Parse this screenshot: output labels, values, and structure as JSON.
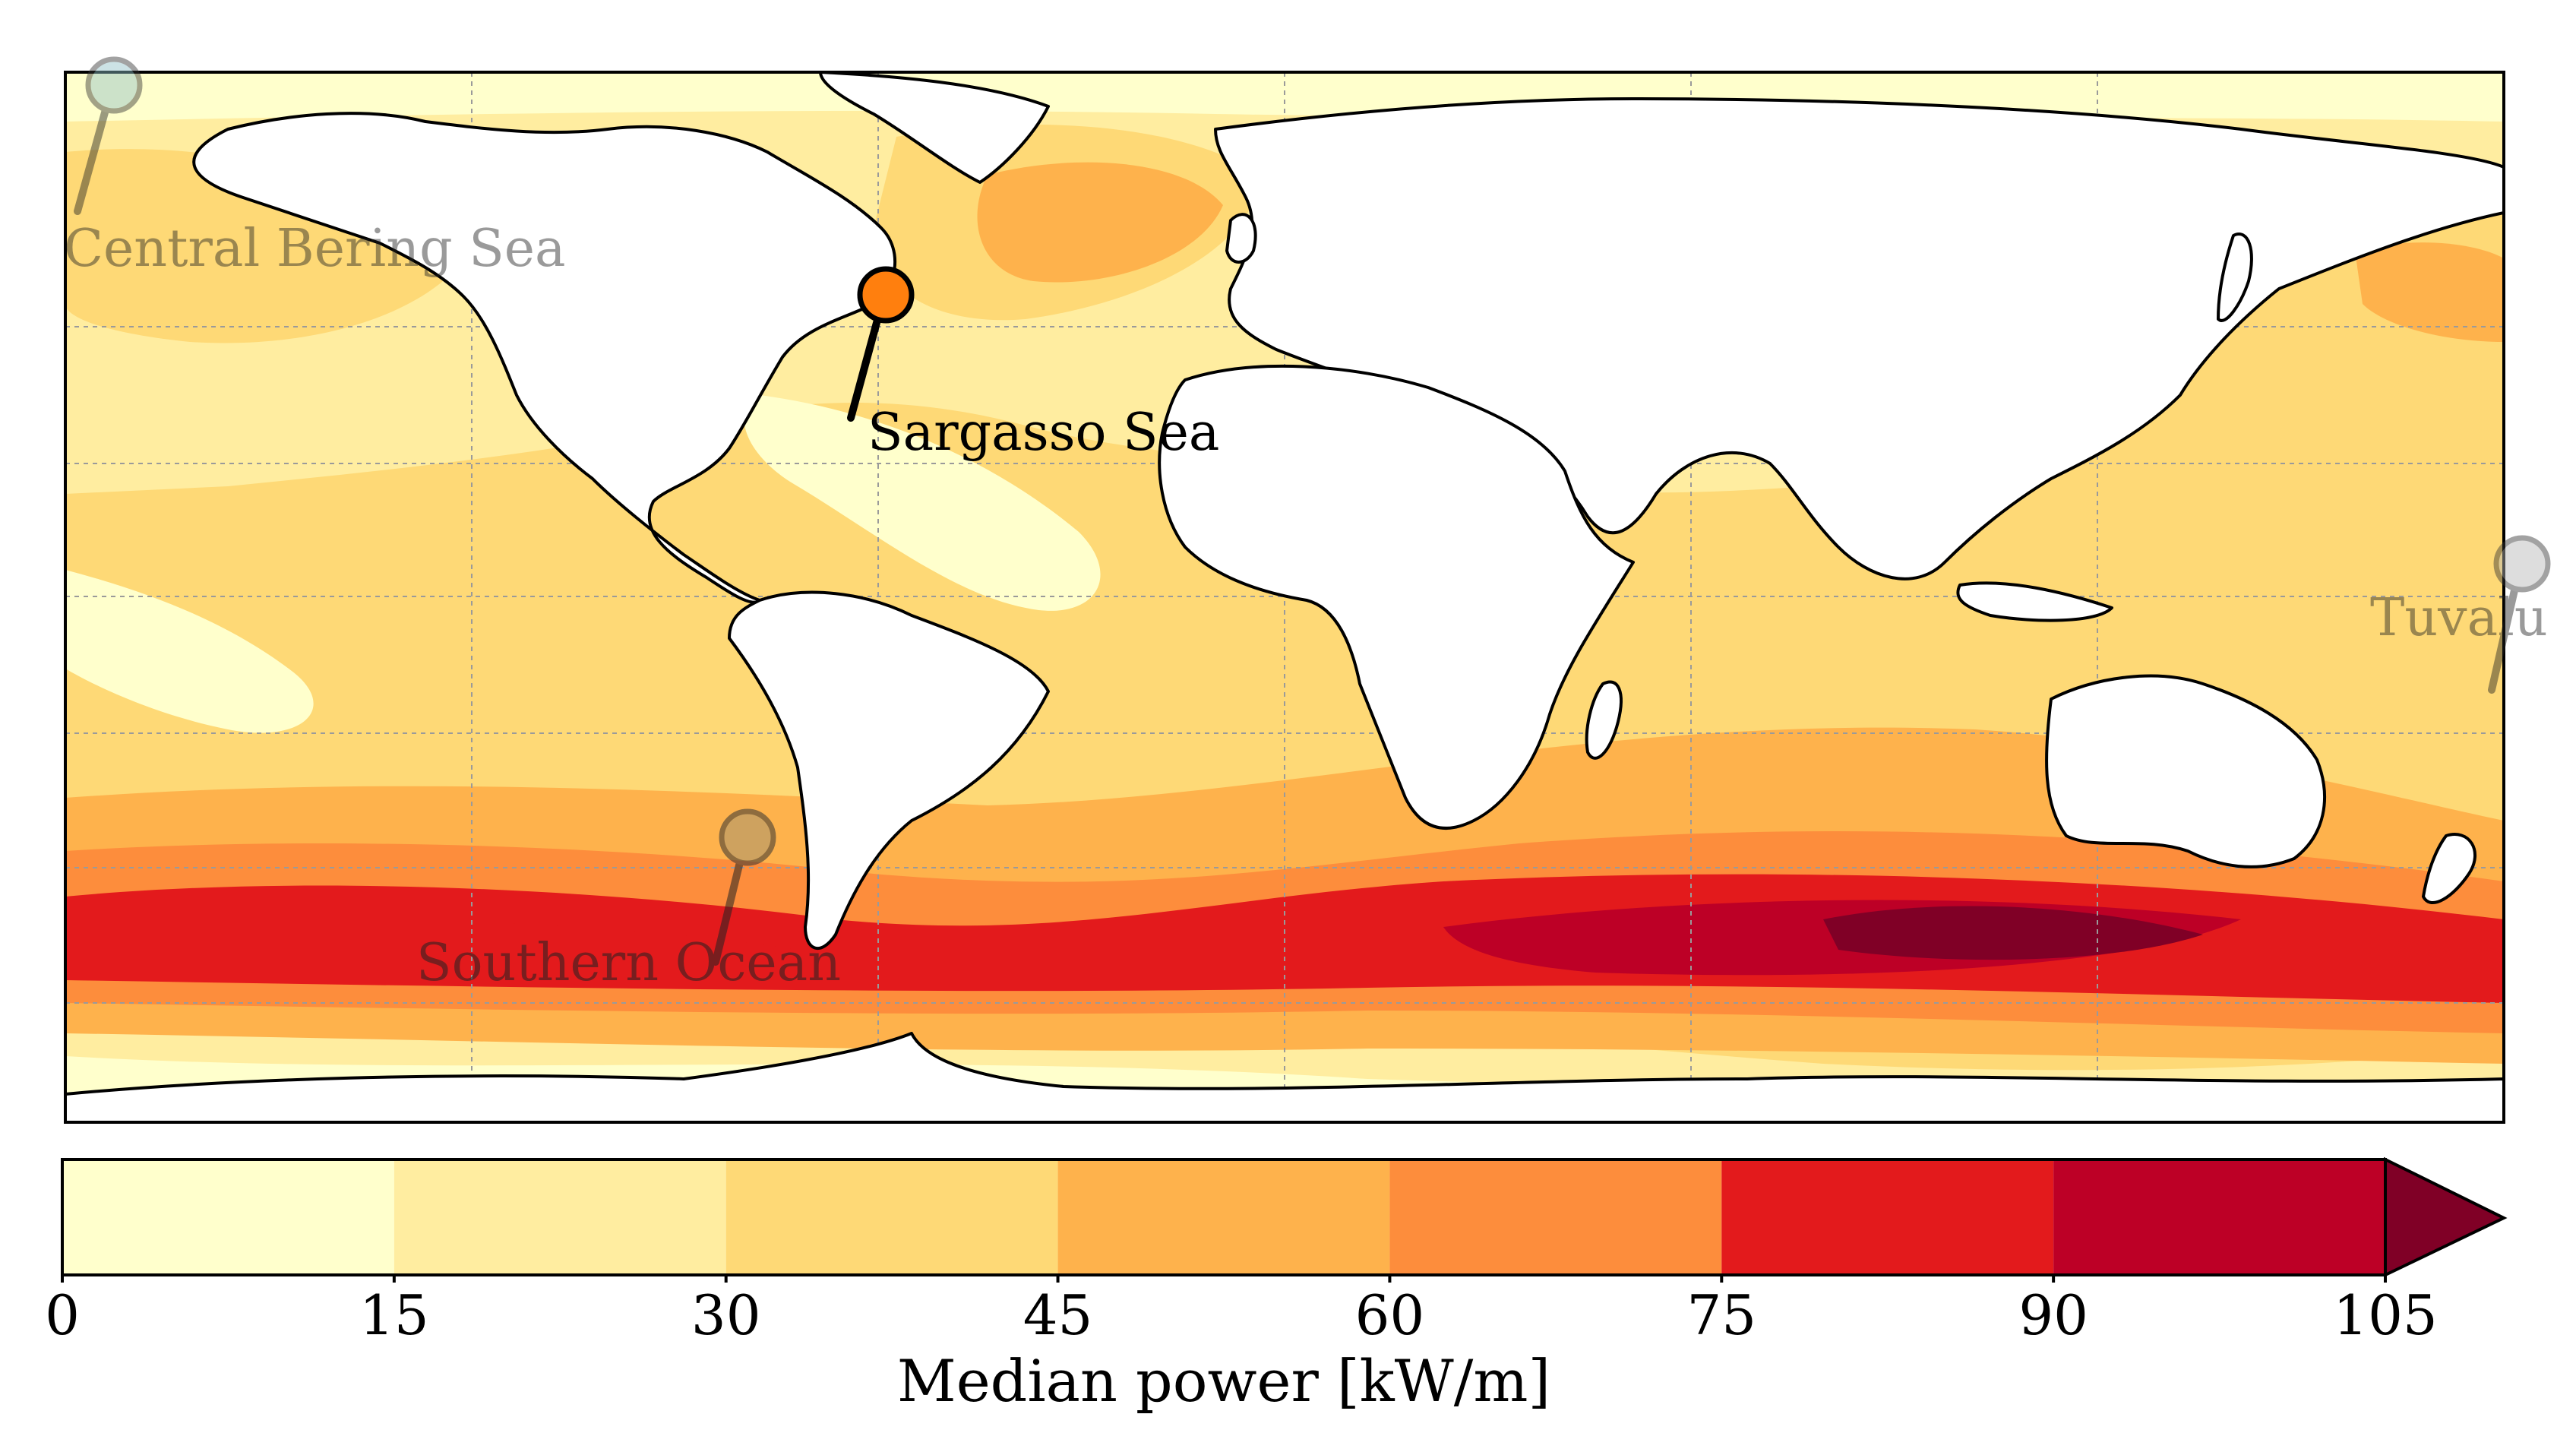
{
  "map": {
    "projection": "plate carree",
    "graticule": "dashed grey",
    "land_color": "#ffffff",
    "coastline_color": "#000000"
  },
  "markers": [
    {
      "name": "central-bering-sea",
      "label": "Central Bering Sea",
      "color": "#8fc1c7",
      "emphasis": "faded"
    },
    {
      "name": "sargasso-sea",
      "label": "Sargasso Sea",
      "color": "#ff7f0e",
      "emphasis": "highlighted"
    },
    {
      "name": "tuvalu",
      "label": "Tuvalu",
      "color": "#b5b5b5",
      "emphasis": "faded"
    },
    {
      "name": "southern-ocean",
      "label": "Southern Ocean",
      "color": "#a89670",
      "emphasis": "faded"
    }
  ],
  "colorbar": {
    "label": "Median power [kW/m]",
    "ticks": [
      "0",
      "15",
      "30",
      "45",
      "60",
      "75",
      "90",
      "105"
    ],
    "bins": [
      {
        "from": 0,
        "to": 15,
        "color": "#ffffcc"
      },
      {
        "from": 15,
        "to": 30,
        "color": "#ffeda0"
      },
      {
        "from": 30,
        "to": 45,
        "color": "#fed976"
      },
      {
        "from": 45,
        "to": 60,
        "color": "#feb24c"
      },
      {
        "from": 60,
        "to": 75,
        "color": "#fd8d3c"
      },
      {
        "from": 75,
        "to": 90,
        "color": "#e31a1c"
      },
      {
        "from": 90,
        "to": 105,
        "color": "#bd0026"
      }
    ],
    "extend_color": "#800026",
    "extend": "max"
  }
}
